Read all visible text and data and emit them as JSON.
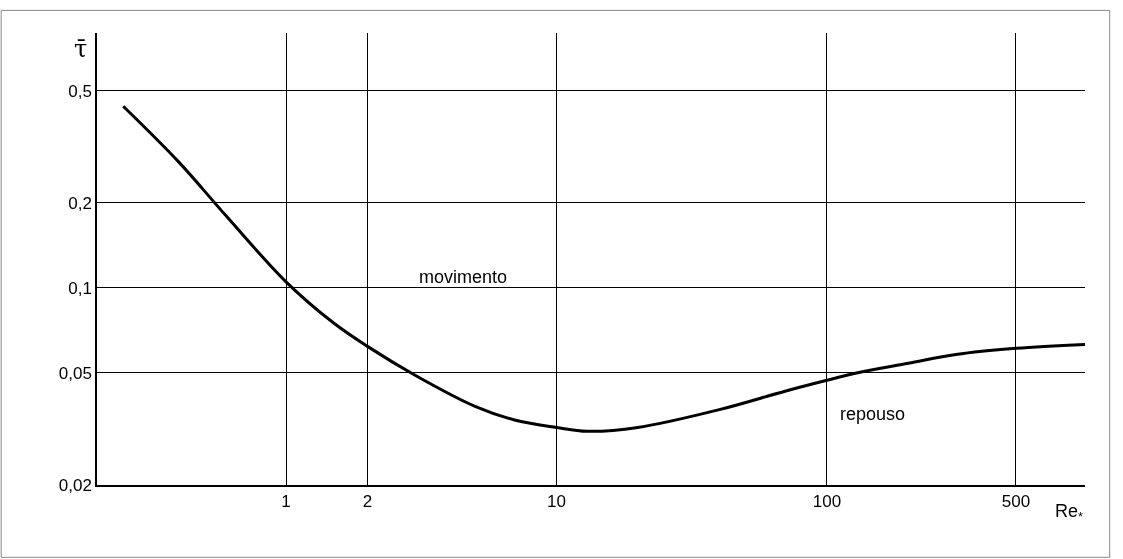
{
  "chart_data": {
    "type": "line",
    "xlabel": "Re$_{*}$",
    "ylabel": "τ̄",
    "log": "xy",
    "grid": true,
    "marker": "none",
    "line_style": "solid",
    "x": [
      0.25,
      0.4,
      0.6,
      1,
      1.5,
      2,
      3,
      5,
      7,
      10,
      13,
      20,
      40,
      70,
      100,
      130,
      200,
      300,
      500,
      900
    ],
    "series": [
      {
        "color": "#000000",
        "values": [
          0.44,
          0.28,
          0.18,
          0.105,
          0.075,
          0.062,
          0.049,
          0.038,
          0.034,
          0.032,
          0.031,
          0.032,
          0.037,
          0.043,
          0.047,
          0.05,
          0.054,
          0.058,
          0.061,
          0.063
        ]
      }
    ],
    "xlim": [
      0.2,
      900
    ],
    "ylim": [
      0.02,
      0.8
    ],
    "xticks": [
      1,
      2,
      10,
      100,
      500
    ],
    "yticks": [
      {
        "value": 0.02,
        "label": "0,02"
      },
      {
        "value": 0.05,
        "label": "0,05"
      },
      {
        "value": 0.1,
        "label": "0,1"
      },
      {
        "value": 0.2,
        "label": "0,2"
      },
      {
        "value": 0.5,
        "label": "0,5"
      }
    ],
    "annotations": [
      "movimento",
      "repouso"
    ]
  }
}
